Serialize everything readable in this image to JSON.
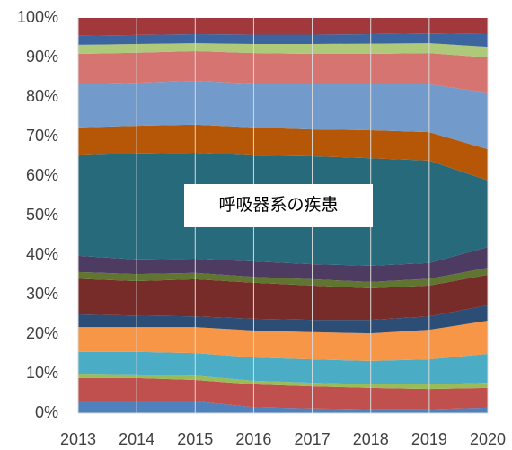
{
  "chart_data": {
    "type": "stacked_area_percent",
    "categories": [
      "2013",
      "2014",
      "2015",
      "2016",
      "2017",
      "2018",
      "2019",
      "2020"
    ],
    "ylim": [
      0,
      100
    ],
    "yticks": [
      {
        "value": 0,
        "label": "0%"
      },
      {
        "value": 10,
        "label": "10%"
      },
      {
        "value": 20,
        "label": "20%"
      },
      {
        "value": 30,
        "label": "30%"
      },
      {
        "value": 40,
        "label": "40%"
      },
      {
        "value": 50,
        "label": "50%"
      },
      {
        "value": 60,
        "label": "60%"
      },
      {
        "value": 70,
        "label": "70%"
      },
      {
        "value": 80,
        "label": "80%"
      },
      {
        "value": 90,
        "label": "90%"
      },
      {
        "value": 100,
        "label": "100%"
      }
    ],
    "grid": "x",
    "annotation": "呼吸器系の疾患",
    "series": [
      {
        "color": "#4f81bd",
        "values": [
          3,
          3,
          3,
          1.5,
          1.2,
          1,
          1,
          1.4
        ]
      },
      {
        "color": "#c0504d",
        "values": [
          5.9,
          5.9,
          5.4,
          5.8,
          5.6,
          5.4,
          5.1,
          5
        ]
      },
      {
        "color": "#9bbb59",
        "values": [
          1.1,
          0.9,
          1.1,
          0.9,
          0.9,
          0.9,
          1.2,
          1.3
        ]
      },
      {
        "color": "#4bacc6",
        "values": [
          5.5,
          5.7,
          5.7,
          5.9,
          5.9,
          5.9,
          6.3,
          7.3
        ]
      },
      {
        "color": "#f79646",
        "values": [
          6.3,
          6.3,
          6.6,
          6.8,
          6.9,
          7,
          7.5,
          8.4
        ]
      },
      {
        "color": "#2c4d75",
        "values": [
          3.2,
          2.9,
          2.7,
          3,
          3.1,
          3.4,
          3.4,
          3.9
        ]
      },
      {
        "color": "#772c2a",
        "values": [
          9,
          8.7,
          9.4,
          9.1,
          8.7,
          8,
          7.8,
          7.7
        ]
      },
      {
        "color": "#5f7530",
        "values": [
          1.7,
          1.8,
          1.6,
          1.5,
          1.6,
          1.6,
          1.7,
          1.8
        ]
      },
      {
        "color": "#4d3b62",
        "values": [
          4.1,
          3.7,
          3.6,
          3.9,
          3.8,
          4.1,
          4,
          5.2
        ]
      },
      {
        "color": "#276a7c",
        "values": [
          25.4,
          26.8,
          26.8,
          26.8,
          27.3,
          27.2,
          25.9,
          16.9
        ]
      },
      {
        "color": "#b65708",
        "values": [
          7.1,
          7,
          7.1,
          7.1,
          6.8,
          7.1,
          7.2,
          7.9
        ]
      },
      {
        "color": "#729aca",
        "values": [
          10.9,
          10.9,
          11.1,
          11.1,
          11.4,
          11.8,
          12.1,
          14.3
        ]
      },
      {
        "color": "#d57471",
        "values": [
          7.7,
          7.6,
          7.5,
          7.7,
          7.7,
          7.5,
          7.9,
          8.9
        ]
      },
      {
        "color": "#afc97a",
        "values": [
          2.3,
          2.2,
          2,
          2.3,
          2.5,
          2.6,
          2.5,
          2.7
        ]
      },
      {
        "color": "#3c65a0",
        "values": [
          2.3,
          2.3,
          2.3,
          2.4,
          2.4,
          2.4,
          2.5,
          3.2
        ]
      },
      {
        "color": "#a0383c",
        "values": [
          4.5,
          4.3,
          4.1,
          4.2,
          4.2,
          4.1,
          3.9,
          4.1
        ]
      }
    ]
  }
}
